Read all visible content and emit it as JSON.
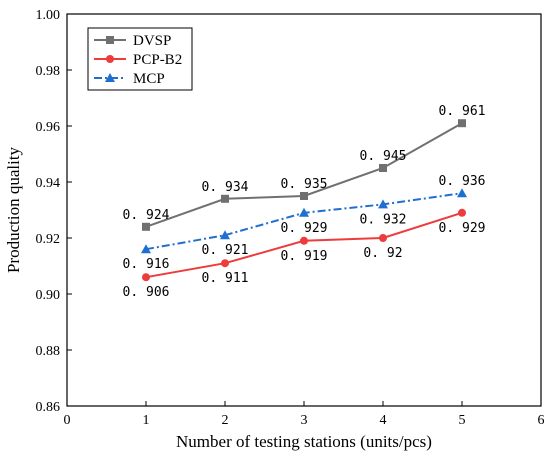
{
  "chart_data": {
    "type": "line",
    "title": "",
    "xlabel": "Number of testing stations (units/pcs)",
    "ylabel": "Production quality",
    "xlim": [
      0,
      6
    ],
    "ylim": [
      0.86,
      1.0
    ],
    "x_ticks": [
      "0",
      "1",
      "2",
      "3",
      "4",
      "5",
      "6"
    ],
    "y_ticks": [
      "0.86",
      "0.88",
      "0.90",
      "0.92",
      "0.94",
      "0.96",
      "0.98",
      "1.00"
    ],
    "grid": false,
    "legend_position": "top-left",
    "x": [
      1,
      2,
      3,
      4,
      5
    ],
    "series": [
      {
        "name": "DVSP",
        "values": [
          0.924,
          0.934,
          0.935,
          0.945,
          0.961
        ],
        "labels": [
          "0.924",
          "0.934",
          "0.935",
          "0.945",
          "0.961"
        ],
        "color": "#707070",
        "marker": "square",
        "line_style": "solid"
      },
      {
        "name": "PCP-B2",
        "values": [
          0.906,
          0.911,
          0.919,
          0.92,
          0.929
        ],
        "labels": [
          "0.906",
          "0.911",
          "0.919",
          "0.92",
          "0.929"
        ],
        "color": "#ee3b3b",
        "marker": "circle",
        "line_style": "solid"
      },
      {
        "name": "MCP",
        "values": [
          0.916,
          0.921,
          0.929,
          0.932,
          0.936
        ],
        "labels": [
          "0.916",
          "0.921",
          "0.929",
          "0.932",
          "0.936"
        ],
        "color": "#1f6fd1",
        "marker": "triangle",
        "line_style": "dash-dot"
      }
    ]
  }
}
